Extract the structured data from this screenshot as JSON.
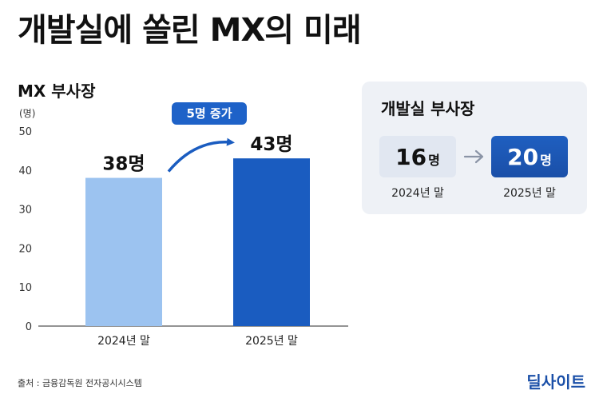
{
  "title": "개발실에 쏠린 MX의 미래",
  "chart_data": {
    "type": "bar",
    "title": "MX 부사장",
    "ylabel": "(명)",
    "ylim": [
      0,
      50
    ],
    "yticks": [
      0,
      10,
      20,
      30,
      40,
      50
    ],
    "categories": [
      "2024년 말",
      "2025년 말"
    ],
    "values": [
      38,
      43
    ],
    "value_labels": [
      "38명",
      "43명"
    ],
    "bar_colors": [
      "#9cc3f0",
      "#1a5cc0"
    ],
    "annotation": "5명 증가",
    "grid": false
  },
  "panel": {
    "title": "개발실 부사장",
    "before": {
      "value": "16",
      "unit": "명",
      "label": "2024년 말"
    },
    "after": {
      "value": "20",
      "unit": "명",
      "label": "2025년 말"
    }
  },
  "colors": {
    "accent": "#1a4fa8",
    "badge": "#1e62c8",
    "panel_bg": "#eef1f6"
  },
  "source": "출처 : 금융감독원 전자공시시스템",
  "logo": "딜사이트"
}
